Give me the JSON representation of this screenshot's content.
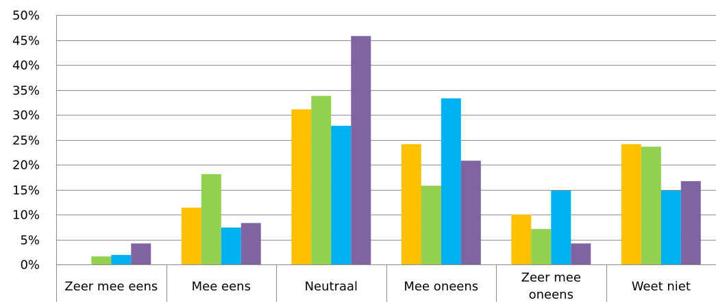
{
  "chart_data": {
    "type": "bar",
    "title": "",
    "xlabel": "",
    "ylabel": "",
    "ylim": [
      0,
      0.5
    ],
    "y_ticks": [
      "0%",
      "5%",
      "10%",
      "15%",
      "20%",
      "25%",
      "30%",
      "35%",
      "40%",
      "45%",
      "50%"
    ],
    "grid": true,
    "legend": "none",
    "categories": [
      [
        "Zeer mee eens"
      ],
      [
        "Mee eens"
      ],
      [
        "Neutraal"
      ],
      [
        "Mee oneens"
      ],
      [
        "Zeer mee",
        "oneens"
      ],
      [
        "Weet niet"
      ]
    ],
    "series": [
      {
        "color": "#ffc000",
        "values": [
          0.0,
          0.114,
          0.311,
          0.241,
          0.1,
          0.241
        ]
      },
      {
        "color": "#92d050",
        "values": [
          0.016,
          0.181,
          0.338,
          0.158,
          0.071,
          0.236
        ]
      },
      {
        "color": "#00b0f0",
        "values": [
          0.019,
          0.074,
          0.278,
          0.333,
          0.148,
          0.148
        ]
      },
      {
        "color": "#8064a2",
        "values": [
          0.042,
          0.083,
          0.458,
          0.208,
          0.042,
          0.167
        ]
      }
    ]
  }
}
